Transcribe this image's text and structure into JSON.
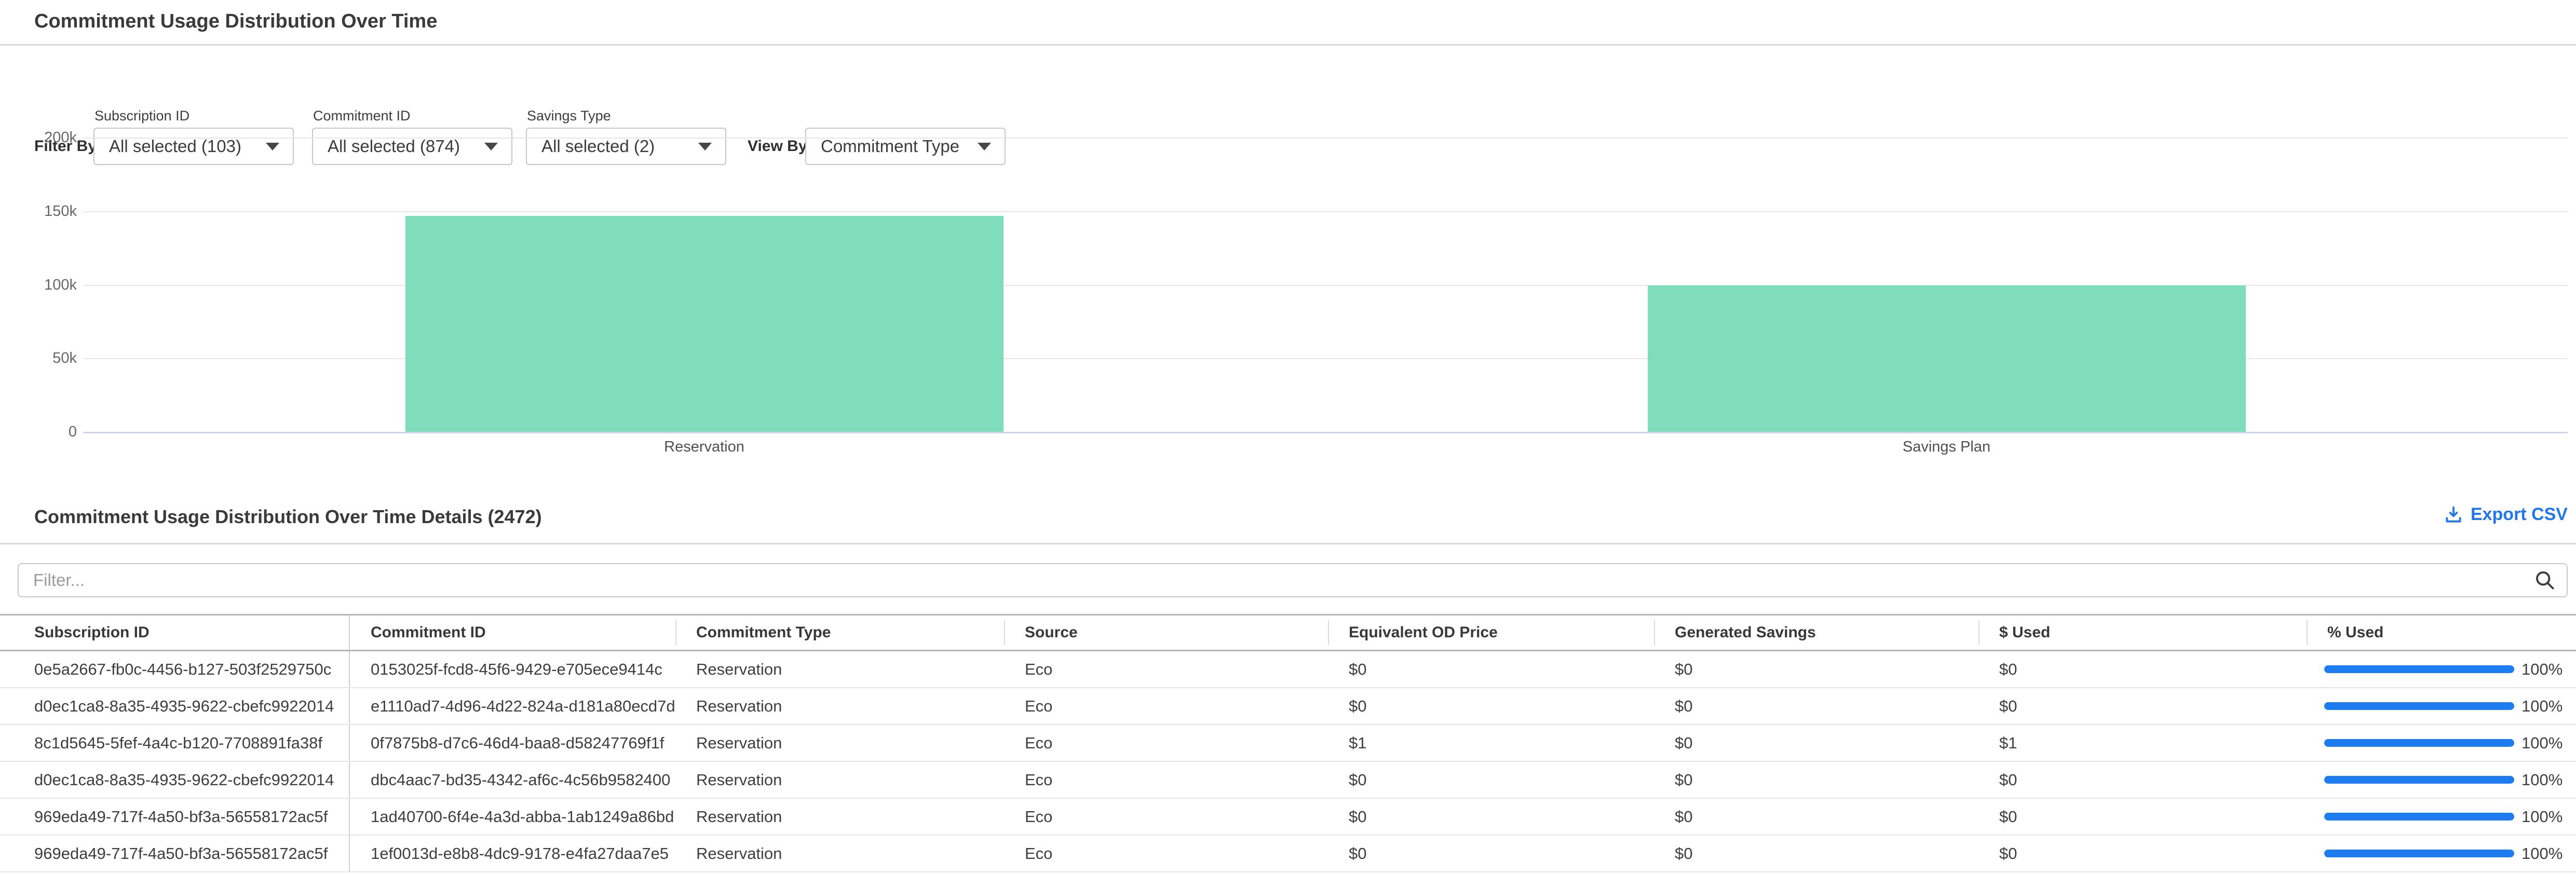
{
  "header": {
    "title": "Commitment Usage Distribution Over Time"
  },
  "filters": {
    "filter_by_label": "Filter By:",
    "view_by_label": "View By:",
    "dropdowns": [
      {
        "label": "Subscription ID",
        "value": "All selected (103)"
      },
      {
        "label": "Commitment ID",
        "value": "All selected (874)"
      },
      {
        "label": "Savings Type",
        "value": "All selected (2)"
      }
    ],
    "view_by_value": "Commitment Type"
  },
  "chart_data": {
    "type": "bar",
    "title": "",
    "xlabel": "",
    "ylabel": "",
    "categories": [
      "Reservation",
      "Savings Plan"
    ],
    "values": [
      147000,
      99700
    ],
    "ylim": [
      0,
      200000
    ],
    "yticks": [
      0,
      50000,
      100000,
      150000,
      200000
    ],
    "ytick_labels": [
      "0",
      "50k",
      "100k",
      "150k",
      "200k"
    ],
    "grid": true,
    "legend": false,
    "bar_color": "#80ddbb",
    "axis_line_color": "#ccd3ea"
  },
  "details": {
    "title": "Commitment Usage Distribution Over Time Details (2472)",
    "export_label": "Export CSV",
    "filter_placeholder": "Filter...",
    "table": {
      "columns": [
        {
          "label": "Subscription ID",
          "key": "subscription_id"
        },
        {
          "label": "Commitment ID",
          "key": "commitment_id"
        },
        {
          "label": "Commitment Type",
          "key": "commitment_type"
        },
        {
          "label": "Source",
          "key": "source"
        },
        {
          "label": "Equivalent OD Price",
          "key": "equivalent_od_price"
        },
        {
          "label": "Generated Savings",
          "key": "generated_savings"
        },
        {
          "label": "$ Used",
          "key": "used"
        },
        {
          "label": "% Used",
          "key": "pct_used"
        }
      ],
      "rows": [
        {
          "subscription_id": "0e5a2667-fb0c-4456-b127-503f2529750c",
          "commitment_id": "0153025f-fcd8-45f6-9429-e705ece9414c",
          "commitment_type": "Reservation",
          "source": "Eco",
          "equivalent_od_price": "$0",
          "generated_savings": "$0",
          "used": "$0",
          "pct_used": 100,
          "pct_used_label": "100%"
        },
        {
          "subscription_id": "d0ec1ca8-8a35-4935-9622-cbefc9922014",
          "commitment_id": "e1110ad7-4d96-4d22-824a-d181a80ecd7d",
          "commitment_type": "Reservation",
          "source": "Eco",
          "equivalent_od_price": "$0",
          "generated_savings": "$0",
          "used": "$0",
          "pct_used": 100,
          "pct_used_label": "100%"
        },
        {
          "subscription_id": "8c1d5645-5fef-4a4c-b120-7708891fa38f",
          "commitment_id": "0f7875b8-d7c6-46d4-baa8-d58247769f1f",
          "commitment_type": "Reservation",
          "source": "Eco",
          "equivalent_od_price": "$1",
          "generated_savings": "$0",
          "used": "$1",
          "pct_used": 100,
          "pct_used_label": "100%"
        },
        {
          "subscription_id": "d0ec1ca8-8a35-4935-9622-cbefc9922014",
          "commitment_id": "dbc4aac7-bd35-4342-af6c-4c56b9582400",
          "commitment_type": "Reservation",
          "source": "Eco",
          "equivalent_od_price": "$0",
          "generated_savings": "$0",
          "used": "$0",
          "pct_used": 100,
          "pct_used_label": "100%"
        },
        {
          "subscription_id": "969eda49-717f-4a50-bf3a-56558172ac5f",
          "commitment_id": "1ad40700-6f4e-4a3d-abba-1ab1249a86bd",
          "commitment_type": "Reservation",
          "source": "Eco",
          "equivalent_od_price": "$0",
          "generated_savings": "$0",
          "used": "$0",
          "pct_used": 100,
          "pct_used_label": "100%"
        },
        {
          "subscription_id": "969eda49-717f-4a50-bf3a-56558172ac5f",
          "commitment_id": "1ef0013d-e8b8-4dc9-9178-e4fa27daa7e5",
          "commitment_type": "Reservation",
          "source": "Eco",
          "equivalent_od_price": "$0",
          "generated_savings": "$0",
          "used": "$0",
          "pct_used": 100,
          "pct_used_label": "100%"
        }
      ]
    }
  },
  "colors": {
    "accent_blue": "#2176e8",
    "progress_blue": "#1d7df0",
    "bar_green": "#80ddbb"
  }
}
